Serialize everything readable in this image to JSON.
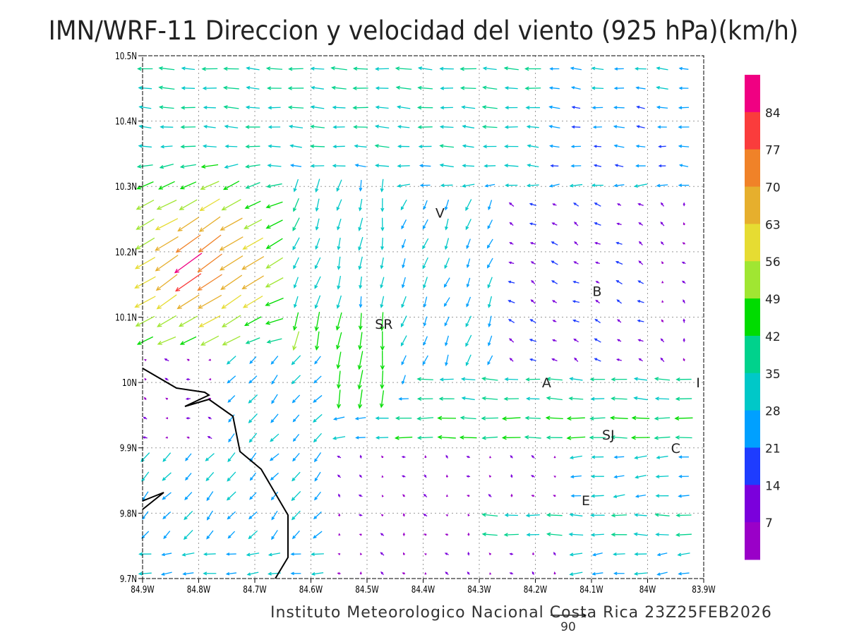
{
  "title": "IMN/WRF-11 Direccion y velocidad del viento (925 hPa)(km/h)",
  "footer": "Instituto Meteorologico Nacional Costa Rica  23Z25FEB2026",
  "chart_data": {
    "type": "vector-field",
    "variable": "wind direction and speed, 925 hPa",
    "units": "km/h",
    "xlim": [
      -84.9,
      -83.9
    ],
    "ylim": [
      9.7,
      10.5
    ],
    "x_ticks": [
      "84.9W",
      "84.8W",
      "84.7W",
      "84.6W",
      "84.5W",
      "84.4W",
      "84.3W",
      "84.2W",
      "84.1W",
      "84W",
      "83.9W"
    ],
    "y_ticks": [
      "9.7N",
      "9.8N",
      "9.9N",
      "10N",
      "10.1N",
      "10.2N",
      "10.3N",
      "10.4N",
      "10.5N"
    ],
    "grid": true,
    "reference_vector": {
      "label": "90",
      "value": 90
    },
    "colorbar": {
      "labels": [
        "7",
        "14",
        "21",
        "28",
        "35",
        "42",
        "49",
        "56",
        "63",
        "70",
        "77",
        "84"
      ],
      "colors": [
        "#9a00c8",
        "#7b00dc",
        "#1e3cff",
        "#00a0ff",
        "#00c8c8",
        "#00d28c",
        "#00dc00",
        "#a0e632",
        "#e6dc32",
        "#e6af2d",
        "#f08228",
        "#fa3c3c",
        "#f00082"
      ]
    },
    "places": [
      {
        "label": "V",
        "lon": -84.37,
        "lat": 10.26
      },
      {
        "label": "SR",
        "lon": -84.47,
        "lat": 10.09
      },
      {
        "label": "B",
        "lon": -84.09,
        "lat": 10.14
      },
      {
        "label": "A",
        "lon": -84.18,
        "lat": 10.0
      },
      {
        "label": "SJ",
        "lon": -84.07,
        "lat": 9.92
      },
      {
        "label": "C",
        "lon": -83.95,
        "lat": 9.9
      },
      {
        "label": "E",
        "lon": -84.11,
        "lat": 9.82
      },
      {
        "label": "I",
        "lon": -83.91,
        "lat": 10.0
      }
    ]
  }
}
